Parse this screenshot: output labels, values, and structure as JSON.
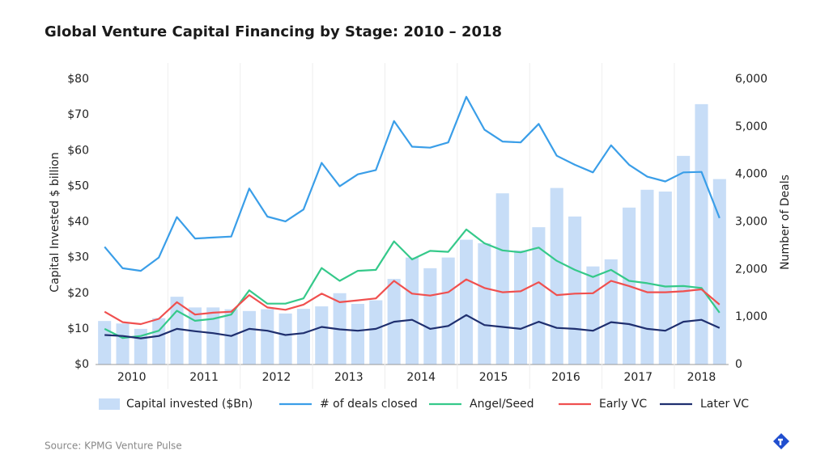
{
  "chart_data": {
    "type": "combo",
    "title": "Global Venture Capital Financing by Stage: 2010 – 2018",
    "y_label": "Capital Invested $ billion",
    "y2_label": "Number of Deals",
    "source": "Source: KPMG Venture Pulse",
    "categories": [
      "2010",
      null,
      null,
      null,
      "2011",
      null,
      null,
      null,
      "2012",
      null,
      null,
      null,
      "2013",
      null,
      null,
      null,
      "2014",
      null,
      null,
      null,
      "2015",
      null,
      null,
      null,
      "2016",
      null,
      null,
      null,
      "2017",
      null,
      null,
      null,
      "2018",
      null,
      null
    ],
    "series": [
      {
        "name": "Capital invested ($Bn)",
        "type": "bar",
        "axis": "y",
        "color": "#c7ddf7",
        "values": [
          12.2,
          11.5,
          10,
          13,
          19,
          16,
          16,
          15.5,
          15,
          15.5,
          14.3,
          15.6,
          16.3,
          20,
          17,
          18,
          24,
          30,
          27,
          30,
          35,
          34,
          48,
          32,
          38.5,
          49.5,
          41.5,
          27.5,
          29.5,
          44,
          49,
          48.5,
          58.5,
          73,
          52
        ]
      },
      {
        "name": "# of deals closed",
        "type": "line",
        "axis": "y2",
        "color": "#3a9ee8",
        "values": [
          2475,
          2025,
          1970,
          2250,
          3100,
          2650,
          2670,
          2690,
          3700,
          3110,
          3010,
          3260,
          4240,
          3750,
          4000,
          4090,
          5120,
          4580,
          4560,
          4670,
          5630,
          4940,
          4690,
          4670,
          5060,
          4390,
          4200,
          4040,
          4610,
          4200,
          3950,
          3850,
          4040,
          4050,
          3080
        ]
      },
      {
        "name": "Angel/Seed",
        "type": "line",
        "axis": "y2",
        "color": "#35c98a",
        "values": [
          750,
          560,
          600,
          710,
          1130,
          920,
          960,
          1050,
          1560,
          1280,
          1280,
          1390,
          2030,
          1760,
          1970,
          1990,
          2590,
          2210,
          2390,
          2370,
          2840,
          2550,
          2400,
          2360,
          2460,
          2180,
          1990,
          1840,
          1990,
          1760,
          1710,
          1640,
          1650,
          1610,
          1090
        ]
      },
      {
        "name": "Early VC",
        "type": "line",
        "axis": "y2",
        "color": "#f0504f",
        "values": [
          1110,
          890,
          850,
          960,
          1310,
          1050,
          1090,
          1110,
          1460,
          1200,
          1150,
          1260,
          1490,
          1310,
          1350,
          1390,
          1760,
          1490,
          1450,
          1520,
          1790,
          1610,
          1520,
          1540,
          1730,
          1460,
          1490,
          1500,
          1760,
          1650,
          1520,
          1520,
          1540,
          1580,
          1260
        ]
      },
      {
        "name": "Later VC",
        "type": "line",
        "axis": "y2",
        "color": "#1f2f6f",
        "values": [
          620,
          600,
          550,
          600,
          750,
          700,
          660,
          600,
          750,
          710,
          620,
          660,
          790,
          740,
          710,
          750,
          900,
          940,
          750,
          810,
          1040,
          830,
          790,
          750,
          900,
          770,
          750,
          710,
          890,
          850,
          750,
          710,
          900,
          940,
          770
        ]
      }
    ],
    "ylim": [
      0,
      80
    ],
    "yticks": [
      {
        "value": 0,
        "label": "$0"
      },
      {
        "value": 10,
        "label": "$10"
      },
      {
        "value": 20,
        "label": "$20"
      },
      {
        "value": 30,
        "label": "$30"
      },
      {
        "value": 40,
        "label": "$40"
      },
      {
        "value": 50,
        "label": "$50"
      },
      {
        "value": 60,
        "label": "$60"
      },
      {
        "value": 70,
        "label": "$70"
      },
      {
        "value": 80,
        "label": "$80"
      }
    ],
    "y2lim": [
      0,
      6000
    ],
    "y2ticks": [
      0,
      {
        "value": 1000,
        "label": "1,000"
      },
      {
        "value": 2000,
        "label": "2,000"
      },
      {
        "value": 3000,
        "label": "3,000"
      },
      {
        "value": 4000,
        "label": "4,000"
      },
      {
        "value": 5000,
        "label": "5,000"
      },
      {
        "value": 6000,
        "label": "6,000"
      }
    ],
    "grid": false,
    "legend": "bottom"
  }
}
